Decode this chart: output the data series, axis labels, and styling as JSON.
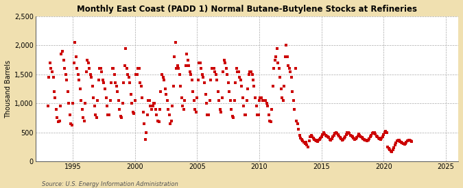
{
  "title": "Monthly East Coast (PADD 1) Normal Butane-Butylene Stocks at Refineries",
  "ylabel": "Thousand Barrels",
  "source": "Source: U.S. Energy Information Administration",
  "outer_bg": "#f0e0b0",
  "plot_bg": "#ffffff",
  "dot_color": "#cc0000",
  "ylim": [
    0,
    2500
  ],
  "yticks": [
    0,
    500,
    1000,
    1500,
    2000,
    2500
  ],
  "ytick_labels": [
    "0",
    "500",
    "1,000",
    "1,500",
    "2,000",
    "2,500"
  ],
  "xlim_start": 1992.0,
  "xlim_end": 2026.0,
  "xticks": [
    1995,
    2000,
    2005,
    2010,
    2015,
    2020,
    2025
  ],
  "data": [
    [
      1993.0,
      950
    ],
    [
      1993.08,
      1450
    ],
    [
      1993.17,
      1700
    ],
    [
      1993.25,
      1600
    ],
    [
      1993.33,
      1550
    ],
    [
      1993.42,
      1450
    ],
    [
      1993.5,
      1200
    ],
    [
      1993.58,
      1100
    ],
    [
      1993.67,
      900
    ],
    [
      1993.75,
      750
    ],
    [
      1993.83,
      680
    ],
    [
      1993.92,
      700
    ],
    [
      1994.0,
      950
    ],
    [
      1994.08,
      1850
    ],
    [
      1994.17,
      1900
    ],
    [
      1994.25,
      1750
    ],
    [
      1994.33,
      1600
    ],
    [
      1994.42,
      1500
    ],
    [
      1994.5,
      1400
    ],
    [
      1994.58,
      1200
    ],
    [
      1994.67,
      1000
    ],
    [
      1994.75,
      800
    ],
    [
      1994.83,
      650
    ],
    [
      1994.92,
      620
    ],
    [
      1995.0,
      1000
    ],
    [
      1995.08,
      1700
    ],
    [
      1995.17,
      2050
    ],
    [
      1995.25,
      1800
    ],
    [
      1995.33,
      1600
    ],
    [
      1995.42,
      1500
    ],
    [
      1995.5,
      1400
    ],
    [
      1995.58,
      1250
    ],
    [
      1995.67,
      1050
    ],
    [
      1995.75,
      900
    ],
    [
      1995.83,
      750
    ],
    [
      1995.92,
      700
    ],
    [
      1996.0,
      1000
    ],
    [
      1996.08,
      1550
    ],
    [
      1996.17,
      1750
    ],
    [
      1996.25,
      1700
    ],
    [
      1996.33,
      1600
    ],
    [
      1996.42,
      1500
    ],
    [
      1996.5,
      1450
    ],
    [
      1996.58,
      1300
    ],
    [
      1996.67,
      1100
    ],
    [
      1996.75,
      950
    ],
    [
      1996.83,
      800
    ],
    [
      1996.92,
      750
    ],
    [
      1997.0,
      1050
    ],
    [
      1997.08,
      1400
    ],
    [
      1997.17,
      1600
    ],
    [
      1997.25,
      1600
    ],
    [
      1997.33,
      1550
    ],
    [
      1997.42,
      1400
    ],
    [
      1997.5,
      1350
    ],
    [
      1997.58,
      1250
    ],
    [
      1997.67,
      1100
    ],
    [
      1997.75,
      950
    ],
    [
      1997.83,
      800
    ],
    [
      1997.92,
      800
    ],
    [
      1998.0,
      1050
    ],
    [
      1998.08,
      1350
    ],
    [
      1998.17,
      1600
    ],
    [
      1998.25,
      1600
    ],
    [
      1998.33,
      1500
    ],
    [
      1998.42,
      1350
    ],
    [
      1998.5,
      1300
    ],
    [
      1998.58,
      1200
    ],
    [
      1998.67,
      1050
    ],
    [
      1998.75,
      900
    ],
    [
      1998.83,
      780
    ],
    [
      1998.92,
      750
    ],
    [
      1999.0,
      1000
    ],
    [
      1999.08,
      1350
    ],
    [
      1999.17,
      1650
    ],
    [
      1999.25,
      1950
    ],
    [
      1999.33,
      1600
    ],
    [
      1999.42,
      1500
    ],
    [
      1999.5,
      1450
    ],
    [
      1999.58,
      1350
    ],
    [
      1999.67,
      1150
    ],
    [
      1999.75,
      1000
    ],
    [
      1999.83,
      850
    ],
    [
      1999.92,
      820
    ],
    [
      2000.0,
      1050
    ],
    [
      2000.08,
      1500
    ],
    [
      2000.17,
      1500
    ],
    [
      2000.25,
      1600
    ],
    [
      2000.33,
      1600
    ],
    [
      2000.42,
      1350
    ],
    [
      2000.5,
      1300
    ],
    [
      2000.58,
      1100
    ],
    [
      2000.67,
      850
    ],
    [
      2000.75,
      650
    ],
    [
      2000.83,
      380
    ],
    [
      2000.92,
      500
    ],
    [
      2001.0,
      800
    ],
    [
      2001.08,
      1050
    ],
    [
      2001.17,
      1050
    ],
    [
      2001.25,
      950
    ],
    [
      2001.33,
      900
    ],
    [
      2001.42,
      950
    ],
    [
      2001.5,
      1000
    ],
    [
      2001.58,
      1000
    ],
    [
      2001.67,
      900
    ],
    [
      2001.75,
      800
    ],
    [
      2001.83,
      700
    ],
    [
      2001.92,
      680
    ],
    [
      2002.0,
      900
    ],
    [
      2002.08,
      1200
    ],
    [
      2002.17,
      1500
    ],
    [
      2002.25,
      1450
    ],
    [
      2002.33,
      1400
    ],
    [
      2002.42,
      1250
    ],
    [
      2002.5,
      1150
    ],
    [
      2002.58,
      1050
    ],
    [
      2002.67,
      900
    ],
    [
      2002.75,
      800
    ],
    [
      2002.83,
      650
    ],
    [
      2002.92,
      700
    ],
    [
      2003.0,
      950
    ],
    [
      2003.08,
      1300
    ],
    [
      2003.17,
      1800
    ],
    [
      2003.25,
      2050
    ],
    [
      2003.33,
      1600
    ],
    [
      2003.42,
      1650
    ],
    [
      2003.5,
      1600
    ],
    [
      2003.58,
      1500
    ],
    [
      2003.67,
      1300
    ],
    [
      2003.75,
      1100
    ],
    [
      2003.83,
      950
    ],
    [
      2003.92,
      900
    ],
    [
      2004.0,
      1050
    ],
    [
      2004.08,
      1650
    ],
    [
      2004.17,
      1850
    ],
    [
      2004.25,
      1750
    ],
    [
      2004.33,
      1650
    ],
    [
      2004.42,
      1550
    ],
    [
      2004.5,
      1500
    ],
    [
      2004.58,
      1400
    ],
    [
      2004.67,
      1200
    ],
    [
      2004.75,
      1050
    ],
    [
      2004.83,
      900
    ],
    [
      2004.92,
      850
    ],
    [
      2005.0,
      1100
    ],
    [
      2005.08,
      1400
    ],
    [
      2005.17,
      1700
    ],
    [
      2005.25,
      1700
    ],
    [
      2005.33,
      1600
    ],
    [
      2005.42,
      1500
    ],
    [
      2005.5,
      1450
    ],
    [
      2005.58,
      1350
    ],
    [
      2005.67,
      1150
    ],
    [
      2005.75,
      1000
    ],
    [
      2005.83,
      800
    ],
    [
      2005.92,
      800
    ],
    [
      2006.0,
      1050
    ],
    [
      2006.08,
      1400
    ],
    [
      2006.17,
      1600
    ],
    [
      2006.25,
      1600
    ],
    [
      2006.33,
      1600
    ],
    [
      2006.42,
      1550
    ],
    [
      2006.5,
      1500
    ],
    [
      2006.58,
      1400
    ],
    [
      2006.67,
      1200
    ],
    [
      2006.75,
      1050
    ],
    [
      2006.83,
      900
    ],
    [
      2006.92,
      850
    ],
    [
      2007.0,
      1100
    ],
    [
      2007.08,
      1550
    ],
    [
      2007.17,
      1750
    ],
    [
      2007.25,
      1700
    ],
    [
      2007.33,
      1600
    ],
    [
      2007.42,
      1500
    ],
    [
      2007.5,
      1350
    ],
    [
      2007.58,
      1200
    ],
    [
      2007.67,
      1050
    ],
    [
      2007.75,
      900
    ],
    [
      2007.83,
      780
    ],
    [
      2007.92,
      750
    ],
    [
      2008.0,
      1050
    ],
    [
      2008.08,
      1350
    ],
    [
      2008.17,
      1600
    ],
    [
      2008.25,
      1550
    ],
    [
      2008.33,
      1550
    ],
    [
      2008.42,
      1450
    ],
    [
      2008.5,
      1400
    ],
    [
      2008.58,
      1300
    ],
    [
      2008.67,
      1100
    ],
    [
      2008.75,
      950
    ],
    [
      2008.83,
      800
    ],
    [
      2008.92,
      800
    ],
    [
      2009.0,
      1050
    ],
    [
      2009.08,
      1250
    ],
    [
      2009.17,
      1500
    ],
    [
      2009.25,
      1550
    ],
    [
      2009.33,
      1550
    ],
    [
      2009.42,
      1500
    ],
    [
      2009.5,
      1400
    ],
    [
      2009.58,
      1300
    ],
    [
      2009.67,
      1100
    ],
    [
      2009.75,
      950
    ],
    [
      2009.83,
      800
    ],
    [
      2009.92,
      800
    ],
    [
      2010.0,
      1050
    ],
    [
      2010.08,
      1100
    ],
    [
      2010.17,
      1100
    ],
    [
      2010.25,
      1050
    ],
    [
      2010.33,
      1050
    ],
    [
      2010.42,
      1050
    ],
    [
      2010.5,
      1050
    ],
    [
      2010.58,
      1000
    ],
    [
      2010.67,
      950
    ],
    [
      2010.75,
      800
    ],
    [
      2010.83,
      700
    ],
    [
      2010.92,
      680
    ],
    [
      2011.0,
      900
    ],
    [
      2011.08,
      1300
    ],
    [
      2011.17,
      1600
    ],
    [
      2011.25,
      1750
    ],
    [
      2011.33,
      1800
    ],
    [
      2011.42,
      1950
    ],
    [
      2011.5,
      1700
    ],
    [
      2011.58,
      1600
    ],
    [
      2011.67,
      1450
    ],
    [
      2011.75,
      1250
    ],
    [
      2011.83,
      1100
    ],
    [
      2011.92,
      1050
    ],
    [
      2012.0,
      1300
    ],
    [
      2012.08,
      1800
    ],
    [
      2012.17,
      2000
    ],
    [
      2012.25,
      1800
    ],
    [
      2012.33,
      1650
    ],
    [
      2012.42,
      1600
    ],
    [
      2012.5,
      1550
    ],
    [
      2012.58,
      1450
    ],
    [
      2012.67,
      1200
    ],
    [
      2012.75,
      1050
    ],
    [
      2012.83,
      900
    ],
    [
      2012.92,
      1600
    ],
    [
      2013.0,
      700
    ],
    [
      2013.08,
      650
    ],
    [
      2013.17,
      550
    ],
    [
      2013.25,
      450
    ],
    [
      2013.33,
      400
    ],
    [
      2013.42,
      380
    ],
    [
      2013.5,
      350
    ],
    [
      2013.58,
      330
    ],
    [
      2013.67,
      310
    ],
    [
      2013.75,
      330
    ],
    [
      2013.83,
      280
    ],
    [
      2013.92,
      250
    ],
    [
      2014.0,
      350
    ],
    [
      2014.08,
      420
    ],
    [
      2014.17,
      450
    ],
    [
      2014.25,
      430
    ],
    [
      2014.33,
      400
    ],
    [
      2014.42,
      380
    ],
    [
      2014.5,
      360
    ],
    [
      2014.58,
      350
    ],
    [
      2014.67,
      340
    ],
    [
      2014.75,
      360
    ],
    [
      2014.83,
      380
    ],
    [
      2014.92,
      400
    ],
    [
      2015.0,
      430
    ],
    [
      2015.08,
      460
    ],
    [
      2015.17,
      490
    ],
    [
      2015.25,
      470
    ],
    [
      2015.33,
      450
    ],
    [
      2015.42,
      440
    ],
    [
      2015.5,
      430
    ],
    [
      2015.58,
      410
    ],
    [
      2015.67,
      380
    ],
    [
      2015.75,
      370
    ],
    [
      2015.83,
      390
    ],
    [
      2015.92,
      420
    ],
    [
      2016.0,
      450
    ],
    [
      2016.08,
      480
    ],
    [
      2016.17,
      500
    ],
    [
      2016.25,
      480
    ],
    [
      2016.33,
      460
    ],
    [
      2016.42,
      440
    ],
    [
      2016.5,
      410
    ],
    [
      2016.58,
      390
    ],
    [
      2016.67,
      370
    ],
    [
      2016.75,
      380
    ],
    [
      2016.83,
      400
    ],
    [
      2016.92,
      430
    ],
    [
      2017.0,
      460
    ],
    [
      2017.08,
      490
    ],
    [
      2017.17,
      500
    ],
    [
      2017.25,
      480
    ],
    [
      2017.33,
      450
    ],
    [
      2017.42,
      440
    ],
    [
      2017.5,
      420
    ],
    [
      2017.58,
      400
    ],
    [
      2017.67,
      380
    ],
    [
      2017.75,
      390
    ],
    [
      2017.83,
      410
    ],
    [
      2017.92,
      440
    ],
    [
      2018.0,
      470
    ],
    [
      2018.08,
      450
    ],
    [
      2018.17,
      430
    ],
    [
      2018.25,
      410
    ],
    [
      2018.33,
      390
    ],
    [
      2018.42,
      380
    ],
    [
      2018.5,
      370
    ],
    [
      2018.58,
      360
    ],
    [
      2018.67,
      350
    ],
    [
      2018.75,
      370
    ],
    [
      2018.83,
      390
    ],
    [
      2018.92,
      420
    ],
    [
      2019.0,
      450
    ],
    [
      2019.08,
      480
    ],
    [
      2019.17,
      500
    ],
    [
      2019.25,
      490
    ],
    [
      2019.33,
      470
    ],
    [
      2019.42,
      440
    ],
    [
      2019.5,
      420
    ],
    [
      2019.58,
      400
    ],
    [
      2019.67,
      390
    ],
    [
      2019.75,
      380
    ],
    [
      2019.83,
      400
    ],
    [
      2019.92,
      430
    ],
    [
      2020.0,
      460
    ],
    [
      2020.08,
      490
    ],
    [
      2020.17,
      520
    ],
    [
      2020.25,
      500
    ],
    [
      2020.33,
      250
    ],
    [
      2020.42,
      220
    ],
    [
      2020.5,
      200
    ],
    [
      2020.58,
      180
    ],
    [
      2020.67,
      170
    ],
    [
      2020.75,
      200
    ],
    [
      2020.83,
      240
    ],
    [
      2020.92,
      280
    ],
    [
      2021.0,
      320
    ],
    [
      2021.08,
      350
    ],
    [
      2021.17,
      370
    ],
    [
      2021.25,
      360
    ],
    [
      2021.33,
      340
    ],
    [
      2021.42,
      330
    ],
    [
      2021.5,
      320
    ],
    [
      2021.58,
      310
    ],
    [
      2021.67,
      300
    ],
    [
      2021.75,
      310
    ],
    [
      2021.83,
      330
    ],
    [
      2021.92,
      350
    ],
    [
      2022.0,
      370
    ],
    [
      2022.08,
      360
    ],
    [
      2022.17,
      350
    ],
    [
      2022.25,
      340
    ]
  ]
}
